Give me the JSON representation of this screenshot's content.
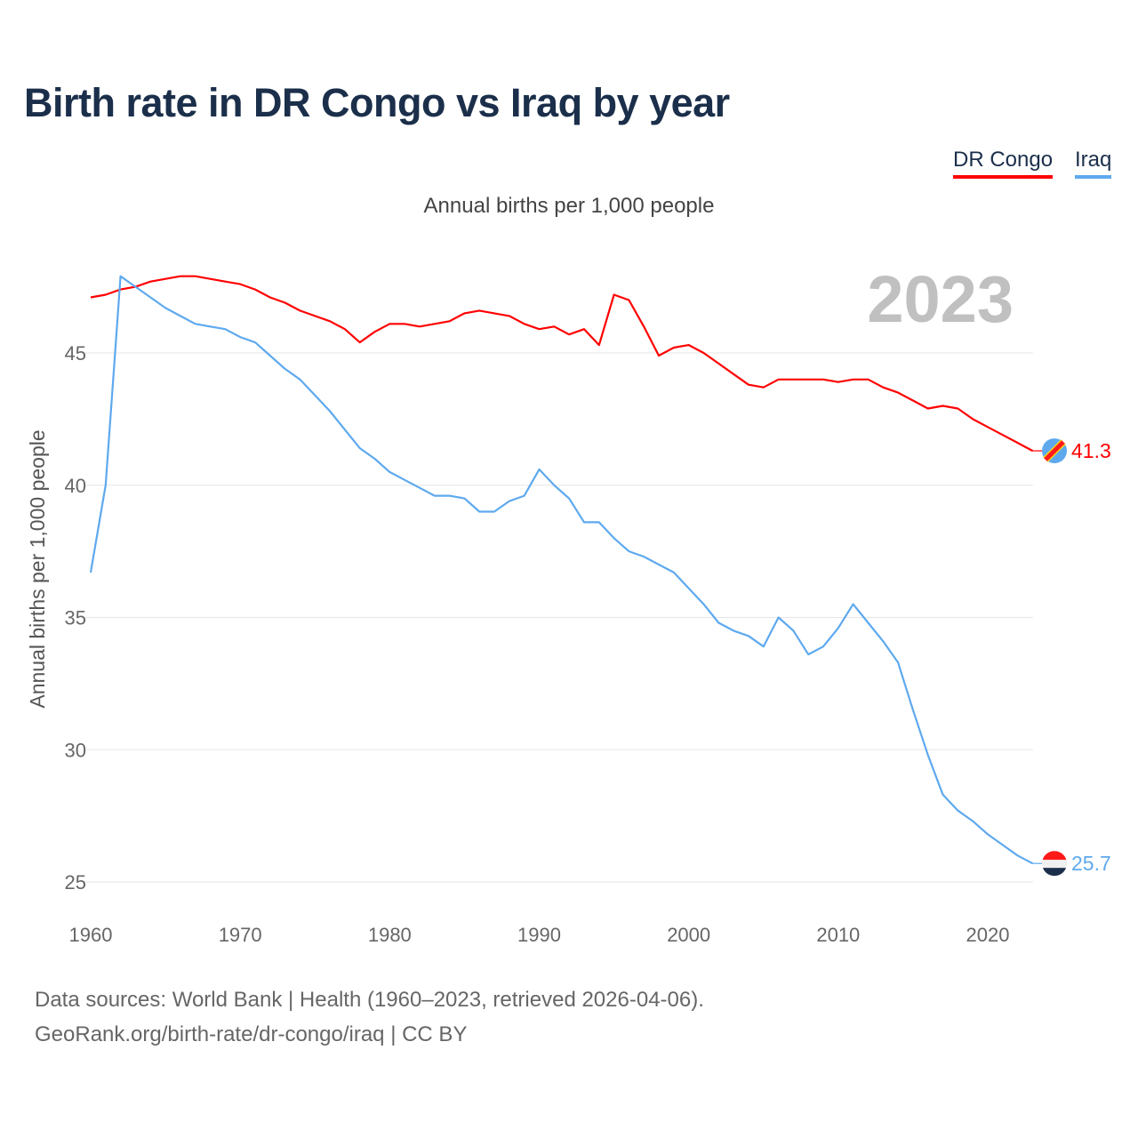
{
  "title": "Birth rate in DR Congo vs Iraq by year",
  "footer": {
    "line1": "Data sources: World Bank | Health (1960–2023, retrieved 2026-04-06).",
    "line2": "GeoRank.org/birth-rate/dr-congo/iraq | CC BY"
  },
  "chart_data": {
    "type": "line",
    "title": "Birth rate in DR Congo vs Iraq by year",
    "subtitle": "Annual births per 1,000 people",
    "ylabel": "Annual births per 1,000 people",
    "xlabel": "",
    "year_label": "2023",
    "xlim": [
      1960,
      2023
    ],
    "ylim": [
      24.5,
      48.5
    ],
    "x_ticks": [
      "1960",
      "1970",
      "1980",
      "1990",
      "2000",
      "2010",
      "2020"
    ],
    "y_ticks": [
      "25",
      "30",
      "35",
      "40",
      "45"
    ],
    "grid": true,
    "legend_position": "top-right",
    "x": [
      1960,
      1961,
      1962,
      1963,
      1964,
      1965,
      1966,
      1967,
      1968,
      1969,
      1970,
      1971,
      1972,
      1973,
      1974,
      1975,
      1976,
      1977,
      1978,
      1979,
      1980,
      1981,
      1982,
      1983,
      1984,
      1985,
      1986,
      1987,
      1988,
      1989,
      1990,
      1991,
      1992,
      1993,
      1994,
      1995,
      1996,
      1997,
      1998,
      1999,
      2000,
      2001,
      2002,
      2003,
      2004,
      2005,
      2006,
      2007,
      2008,
      2009,
      2010,
      2011,
      2012,
      2013,
      2014,
      2015,
      2016,
      2017,
      2018,
      2019,
      2020,
      2021,
      2022,
      2023
    ],
    "series": [
      {
        "name": "DR Congo",
        "color": "#ff0000",
        "end_label": "41.3",
        "values": [
          47.1,
          47.2,
          47.4,
          47.5,
          47.7,
          47.8,
          47.9,
          47.9,
          47.8,
          47.7,
          47.6,
          47.4,
          47.1,
          46.9,
          46.6,
          46.4,
          46.2,
          45.9,
          45.4,
          45.8,
          46.1,
          46.1,
          46.0,
          46.1,
          46.2,
          46.5,
          46.6,
          46.5,
          46.4,
          46.1,
          45.9,
          46.0,
          45.7,
          45.9,
          45.3,
          47.2,
          47.0,
          46.0,
          44.9,
          45.2,
          45.3,
          45.0,
          44.6,
          44.2,
          43.8,
          43.7,
          44.0,
          44.0,
          44.0,
          44.0,
          43.9,
          44.0,
          44.0,
          43.7,
          43.5,
          43.2,
          42.9,
          43.0,
          42.9,
          42.5,
          42.2,
          41.9,
          41.6,
          41.3
        ]
      },
      {
        "name": "Iraq",
        "color": "#5ea9ee",
        "end_label": "25.7",
        "values": [
          36.7,
          40.0,
          47.9,
          47.5,
          47.1,
          46.7,
          46.4,
          46.1,
          46.0,
          45.9,
          45.6,
          45.4,
          44.9,
          44.4,
          44.0,
          43.4,
          42.8,
          42.1,
          41.4,
          41.0,
          40.5,
          40.2,
          39.9,
          39.6,
          39.6,
          39.5,
          39.0,
          39.0,
          39.4,
          39.6,
          40.6,
          40.0,
          39.5,
          38.6,
          38.6,
          38.0,
          37.5,
          37.3,
          37.0,
          36.7,
          36.1,
          35.5,
          34.8,
          34.5,
          34.3,
          33.9,
          35.0,
          34.5,
          33.6,
          33.9,
          34.6,
          35.5,
          34.8,
          34.1,
          33.3,
          31.5,
          29.8,
          28.3,
          27.7,
          27.3,
          26.8,
          26.4,
          26.0,
          25.7
        ]
      }
    ]
  }
}
